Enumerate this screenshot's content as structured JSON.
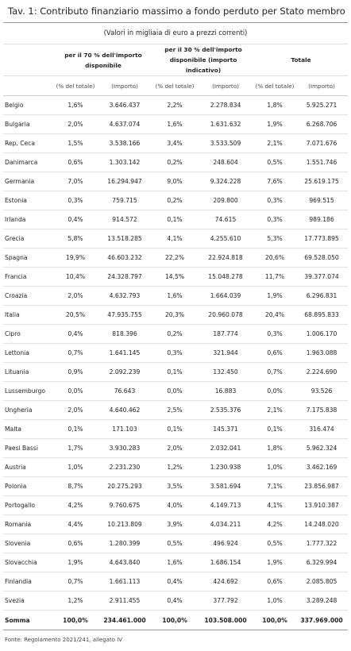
{
  "header": {
    "title": "Tav. 1: Contributo finanziario massimo a fondo perduto per Stato membro",
    "subtitle": "(Valori in migliaia di euro a prezzi correnti)"
  },
  "table": {
    "groups": [
      "per il 70 % dell'importo disponibile",
      "per il 30 % dell'importo disponibile (importo indicativo)",
      "Totale"
    ],
    "subheaders": [
      "(% del totale)",
      "(Importo)",
      "(% del totale)",
      "(Importo)",
      "(% del totale)",
      "(Importo)"
    ],
    "rows": [
      [
        "Belgio",
        "1,6%",
        "3.646.437",
        "2,2%",
        "2.278.834",
        "1,8%",
        "5.925.271"
      ],
      [
        "Bulgaria",
        "2,0%",
        "4.637.074",
        "1,6%",
        "1.631.632",
        "1,9%",
        "6.268.706"
      ],
      [
        "Rep. Ceca",
        "1,5%",
        "3.538.166",
        "3,4%",
        "3.533.509",
        "2,1%",
        "7.071.676"
      ],
      [
        "Danimarca",
        "0,6%",
        "1.303.142",
        "0,2%",
        "248.604",
        "0,5%",
        "1.551.746"
      ],
      [
        "Germania",
        "7,0%",
        "16.294.947",
        "9,0%",
        "9.324.228",
        "7,6%",
        "25.619.175"
      ],
      [
        "Estonia",
        "0,3%",
        "759.715",
        "0,2%",
        "209.800",
        "0,3%",
        "969.515"
      ],
      [
        "Irlanda",
        "0,4%",
        "914.572",
        "0,1%",
        "74.615",
        "0,3%",
        "989.186"
      ],
      [
        "Grecia",
        "5,8%",
        "13.518.285",
        "4,1%",
        "4.255.610",
        "5,3%",
        "17.773.895"
      ],
      [
        "Spagna",
        "19,9%",
        "46.603.232",
        "22,2%",
        "22.924.818",
        "20,6%",
        "69.528.050"
      ],
      [
        "Francia",
        "10,4%",
        "24.328.797",
        "14,5%",
        "15.048.278",
        "11,7%",
        "39.377.074"
      ],
      [
        "Croazia",
        "2,0%",
        "4.632.793",
        "1,6%",
        "1.664.039",
        "1,9%",
        "6.296.831"
      ],
      [
        "Italia",
        "20,5%",
        "47.935.755",
        "20,3%",
        "20.960.078",
        "20,4%",
        "68.895.833"
      ],
      [
        "Cipro",
        "0,4%",
        "818.396",
        "0,2%",
        "187.774",
        "0,3%",
        "1.006.170"
      ],
      [
        "Lettonia",
        "0,7%",
        "1.641.145",
        "0,3%",
        "321.944",
        "0,6%",
        "1.963.088"
      ],
      [
        "Lituania",
        "0,9%",
        "2.092.239",
        "0,1%",
        "132.450",
        "0,7%",
        "2.224.690"
      ],
      [
        "Lussemburgo",
        "0,0%",
        "76.643",
        "0,0%",
        "16.883",
        "0,0%",
        "93.526"
      ],
      [
        "Ungheria",
        "2,0%",
        "4.640.462",
        "2,5%",
        "2.535.376",
        "2,1%",
        "7.175.838"
      ],
      [
        "Malta",
        "0,1%",
        "171.103",
        "0,1%",
        "145.371",
        "0,1%",
        "316.474"
      ],
      [
        "Paesi Bassi",
        "1,7%",
        "3.930.283",
        "2,0%",
        "2.032.041",
        "1,8%",
        "5.962.324"
      ],
      [
        "Austria",
        "1,0%",
        "2.231.230",
        "1,2%",
        "1.230.938",
        "1,0%",
        "3.462.169"
      ],
      [
        "Polonia",
        "8,7%",
        "20.275.293",
        "3,5%",
        "3.581.694",
        "7,1%",
        "23.856.987"
      ],
      [
        "Portogallo",
        "4,2%",
        "9.760.675",
        "4,0%",
        "4.149.713",
        "4,1%",
        "13.910.387"
      ],
      [
        "Romania",
        "4,4%",
        "10.213.809",
        "3,9%",
        "4.034.211",
        "4,2%",
        "14.248.020"
      ],
      [
        "Slovenia",
        "0,6%",
        "1.280.399",
        "0,5%",
        "496.924",
        "0,5%",
        "1.777.322"
      ],
      [
        "Slovacchia",
        "1,9%",
        "4.643.840",
        "1,6%",
        "1.686.154",
        "1,9%",
        "6.329.994"
      ],
      [
        "Finlandia",
        "0,7%",
        "1.661.113",
        "0,4%",
        "424.692",
        "0,6%",
        "2.085.805"
      ],
      [
        "Svezia",
        "1,2%",
        "2.911.455",
        "0,4%",
        "377.792",
        "1,0%",
        "3.289.248"
      ]
    ],
    "total": [
      "Somma",
      "100,0%",
      "234.461.000",
      "100,0%",
      "103.508.000",
      "100,0%",
      "337.969.000"
    ]
  },
  "footer": "Fonte: Regolamento 2021/241, allegato IV"
}
